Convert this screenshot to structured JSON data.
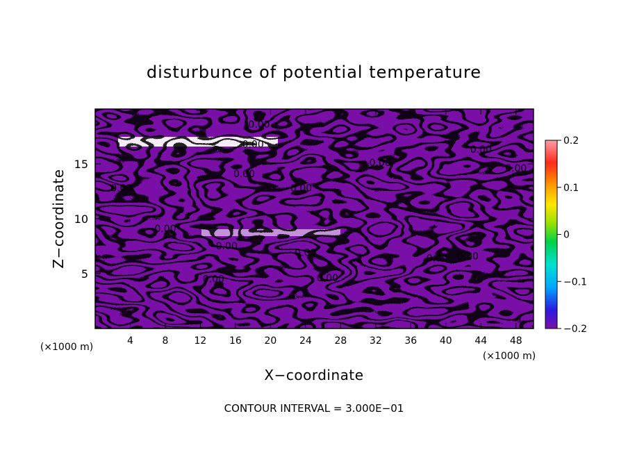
{
  "chart_data": {
    "type": "heatmap",
    "title": "disturbunce of potential temperature",
    "xlabel": "X−coordinate",
    "ylabel": "Z−coordinate",
    "x_unit_label": "(×1000 m)",
    "y_unit_label": "(×1000 m)",
    "x_ticks": [
      4,
      8,
      12,
      16,
      20,
      24,
      28,
      32,
      36,
      40,
      44,
      48
    ],
    "y_ticks": [
      5,
      10,
      15
    ],
    "xlim": [
      0,
      50
    ],
    "ylim": [
      0,
      20
    ],
    "colorbar": {
      "range": [
        -0.2,
        0.2
      ],
      "ticks": [
        {
          "value": 0.2,
          "label": "0.2"
        },
        {
          "value": 0.1,
          "label": "0.1"
        },
        {
          "value": 0.0,
          "label": "0"
        },
        {
          "value": -0.1,
          "label": "−0.1"
        },
        {
          "value": -0.2,
          "label": "−0.2"
        }
      ],
      "colors": [
        "#7b0fa8",
        "#2b1be0",
        "#00a8ff",
        "#00e0d0",
        "#00d24a",
        "#9ae000",
        "#ffe800",
        "#ff9a00",
        "#ff2a1a",
        "#ff9ea8"
      ]
    },
    "contour_labels": [
      {
        "x": 18.7,
        "y": 18.3,
        "text": "0.00"
      },
      {
        "x": 18.0,
        "y": 16.5,
        "text": "0.00"
      },
      {
        "x": 17.0,
        "y": 13.8,
        "text": "0.00"
      },
      {
        "x": 23.5,
        "y": 12.5,
        "text": "0.00"
      },
      {
        "x": 3.0,
        "y": 12.5,
        "text": "0.00"
      },
      {
        "x": 8.0,
        "y": 8.8,
        "text": "0.00"
      },
      {
        "x": 15.0,
        "y": 7.2,
        "text": "0.00"
      },
      {
        "x": 24.0,
        "y": 6.6,
        "text": "0.00"
      },
      {
        "x": 13.5,
        "y": 4.2,
        "text": "0.00"
      },
      {
        "x": 26.5,
        "y": 4.3,
        "text": "0.00"
      },
      {
        "x": 32.5,
        "y": 14.8,
        "text": "0.00"
      },
      {
        "x": 44.0,
        "y": 16.0,
        "text": "0.00"
      },
      {
        "x": 48.0,
        "y": 14.3,
        "text": "0.00"
      },
      {
        "x": 39.0,
        "y": 6.1,
        "text": "0.00"
      },
      {
        "x": 42.5,
        "y": 6.3,
        "text": "0.00"
      }
    ],
    "contour_interval": "CONTOUR INTERVAL = 3.000E−01"
  }
}
